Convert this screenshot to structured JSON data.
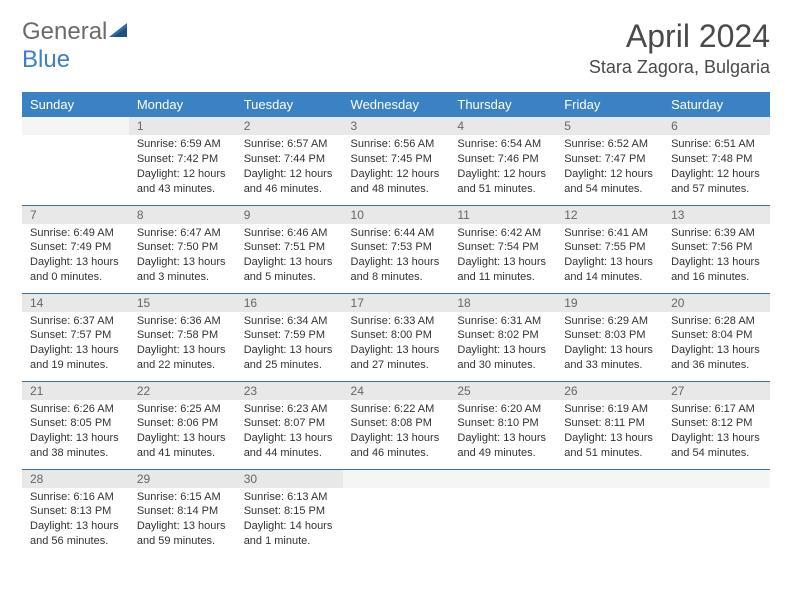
{
  "logo": {
    "text_gray": "General",
    "text_blue": "Blue",
    "icon_color": "#2f6aa8"
  },
  "header": {
    "month": "April 2024",
    "location": "Stara Zagora, Bulgaria"
  },
  "colors": {
    "header_bg": "#3b82c4",
    "header_text": "#ffffff",
    "daynum_bg": "#e8e8e8",
    "border": "#3b6fa0"
  },
  "weekdays": [
    "Sunday",
    "Monday",
    "Tuesday",
    "Wednesday",
    "Thursday",
    "Friday",
    "Saturday"
  ],
  "weeks": [
    [
      {
        "n": "",
        "sunrise": "",
        "sunset": "",
        "daylight": ""
      },
      {
        "n": "1",
        "sunrise": "Sunrise: 6:59 AM",
        "sunset": "Sunset: 7:42 PM",
        "daylight": "Daylight: 12 hours and 43 minutes."
      },
      {
        "n": "2",
        "sunrise": "Sunrise: 6:57 AM",
        "sunset": "Sunset: 7:44 PM",
        "daylight": "Daylight: 12 hours and 46 minutes."
      },
      {
        "n": "3",
        "sunrise": "Sunrise: 6:56 AM",
        "sunset": "Sunset: 7:45 PM",
        "daylight": "Daylight: 12 hours and 48 minutes."
      },
      {
        "n": "4",
        "sunrise": "Sunrise: 6:54 AM",
        "sunset": "Sunset: 7:46 PM",
        "daylight": "Daylight: 12 hours and 51 minutes."
      },
      {
        "n": "5",
        "sunrise": "Sunrise: 6:52 AM",
        "sunset": "Sunset: 7:47 PM",
        "daylight": "Daylight: 12 hours and 54 minutes."
      },
      {
        "n": "6",
        "sunrise": "Sunrise: 6:51 AM",
        "sunset": "Sunset: 7:48 PM",
        "daylight": "Daylight: 12 hours and 57 minutes."
      }
    ],
    [
      {
        "n": "7",
        "sunrise": "Sunrise: 6:49 AM",
        "sunset": "Sunset: 7:49 PM",
        "daylight": "Daylight: 13 hours and 0 minutes."
      },
      {
        "n": "8",
        "sunrise": "Sunrise: 6:47 AM",
        "sunset": "Sunset: 7:50 PM",
        "daylight": "Daylight: 13 hours and 3 minutes."
      },
      {
        "n": "9",
        "sunrise": "Sunrise: 6:46 AM",
        "sunset": "Sunset: 7:51 PM",
        "daylight": "Daylight: 13 hours and 5 minutes."
      },
      {
        "n": "10",
        "sunrise": "Sunrise: 6:44 AM",
        "sunset": "Sunset: 7:53 PM",
        "daylight": "Daylight: 13 hours and 8 minutes."
      },
      {
        "n": "11",
        "sunrise": "Sunrise: 6:42 AM",
        "sunset": "Sunset: 7:54 PM",
        "daylight": "Daylight: 13 hours and 11 minutes."
      },
      {
        "n": "12",
        "sunrise": "Sunrise: 6:41 AM",
        "sunset": "Sunset: 7:55 PM",
        "daylight": "Daylight: 13 hours and 14 minutes."
      },
      {
        "n": "13",
        "sunrise": "Sunrise: 6:39 AM",
        "sunset": "Sunset: 7:56 PM",
        "daylight": "Daylight: 13 hours and 16 minutes."
      }
    ],
    [
      {
        "n": "14",
        "sunrise": "Sunrise: 6:37 AM",
        "sunset": "Sunset: 7:57 PM",
        "daylight": "Daylight: 13 hours and 19 minutes."
      },
      {
        "n": "15",
        "sunrise": "Sunrise: 6:36 AM",
        "sunset": "Sunset: 7:58 PM",
        "daylight": "Daylight: 13 hours and 22 minutes."
      },
      {
        "n": "16",
        "sunrise": "Sunrise: 6:34 AM",
        "sunset": "Sunset: 7:59 PM",
        "daylight": "Daylight: 13 hours and 25 minutes."
      },
      {
        "n": "17",
        "sunrise": "Sunrise: 6:33 AM",
        "sunset": "Sunset: 8:00 PM",
        "daylight": "Daylight: 13 hours and 27 minutes."
      },
      {
        "n": "18",
        "sunrise": "Sunrise: 6:31 AM",
        "sunset": "Sunset: 8:02 PM",
        "daylight": "Daylight: 13 hours and 30 minutes."
      },
      {
        "n": "19",
        "sunrise": "Sunrise: 6:29 AM",
        "sunset": "Sunset: 8:03 PM",
        "daylight": "Daylight: 13 hours and 33 minutes."
      },
      {
        "n": "20",
        "sunrise": "Sunrise: 6:28 AM",
        "sunset": "Sunset: 8:04 PM",
        "daylight": "Daylight: 13 hours and 36 minutes."
      }
    ],
    [
      {
        "n": "21",
        "sunrise": "Sunrise: 6:26 AM",
        "sunset": "Sunset: 8:05 PM",
        "daylight": "Daylight: 13 hours and 38 minutes."
      },
      {
        "n": "22",
        "sunrise": "Sunrise: 6:25 AM",
        "sunset": "Sunset: 8:06 PM",
        "daylight": "Daylight: 13 hours and 41 minutes."
      },
      {
        "n": "23",
        "sunrise": "Sunrise: 6:23 AM",
        "sunset": "Sunset: 8:07 PM",
        "daylight": "Daylight: 13 hours and 44 minutes."
      },
      {
        "n": "24",
        "sunrise": "Sunrise: 6:22 AM",
        "sunset": "Sunset: 8:08 PM",
        "daylight": "Daylight: 13 hours and 46 minutes."
      },
      {
        "n": "25",
        "sunrise": "Sunrise: 6:20 AM",
        "sunset": "Sunset: 8:10 PM",
        "daylight": "Daylight: 13 hours and 49 minutes."
      },
      {
        "n": "26",
        "sunrise": "Sunrise: 6:19 AM",
        "sunset": "Sunset: 8:11 PM",
        "daylight": "Daylight: 13 hours and 51 minutes."
      },
      {
        "n": "27",
        "sunrise": "Sunrise: 6:17 AM",
        "sunset": "Sunset: 8:12 PM",
        "daylight": "Daylight: 13 hours and 54 minutes."
      }
    ],
    [
      {
        "n": "28",
        "sunrise": "Sunrise: 6:16 AM",
        "sunset": "Sunset: 8:13 PM",
        "daylight": "Daylight: 13 hours and 56 minutes."
      },
      {
        "n": "29",
        "sunrise": "Sunrise: 6:15 AM",
        "sunset": "Sunset: 8:14 PM",
        "daylight": "Daylight: 13 hours and 59 minutes."
      },
      {
        "n": "30",
        "sunrise": "Sunrise: 6:13 AM",
        "sunset": "Sunset: 8:15 PM",
        "daylight": "Daylight: 14 hours and 1 minute."
      },
      {
        "n": "",
        "sunrise": "",
        "sunset": "",
        "daylight": ""
      },
      {
        "n": "",
        "sunrise": "",
        "sunset": "",
        "daylight": ""
      },
      {
        "n": "",
        "sunrise": "",
        "sunset": "",
        "daylight": ""
      },
      {
        "n": "",
        "sunrise": "",
        "sunset": "",
        "daylight": ""
      }
    ]
  ]
}
